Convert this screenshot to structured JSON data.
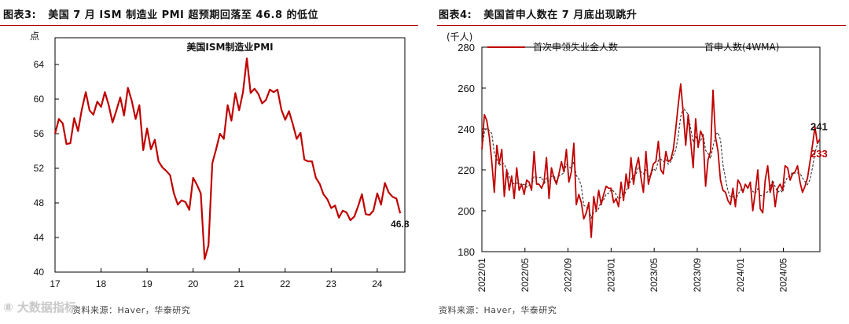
{
  "left": {
    "title_prefix": "图表3:",
    "title": "美国 7 月 ISM 制造业 PMI 超预期回落至 46.8 的低位",
    "source": "资料来源：Haver，华泰研究",
    "watermark": "⑧ 大数据指标"
  },
  "right": {
    "title_prefix": "图表4:",
    "title": "美国首申人数在 7 月底出现跳升",
    "source": "资料来源：Haver，华泰研究"
  },
  "chart_data": [
    {
      "type": "line",
      "title": "美国ISM制造业PMI",
      "ylabel": "点",
      "ylim": [
        40,
        65
      ],
      "yticks": [
        "40",
        "44",
        "48",
        "52",
        "56",
        "60",
        "64"
      ],
      "xlim": [
        17,
        24.6
      ],
      "xticks": [
        "17",
        "18",
        "19",
        "20",
        "21",
        "22",
        "23",
        "24"
      ],
      "annotation": "46.8",
      "color": "#c00000",
      "series": [
        {
          "x": [
            17.0,
            17.083,
            17.167,
            17.25,
            17.333,
            17.417,
            17.5,
            17.583,
            17.667,
            17.75,
            17.833,
            17.917,
            18.0,
            18.083,
            18.167,
            18.25,
            18.333,
            18.417,
            18.5,
            18.583,
            18.667,
            18.75,
            18.833,
            18.917,
            19.0,
            19.083,
            19.167,
            19.25,
            19.333,
            19.417,
            19.5,
            19.583,
            19.667,
            19.75,
            19.833,
            19.917,
            20.0,
            20.083,
            20.167,
            20.25,
            20.333,
            20.417,
            20.5,
            20.583,
            20.667,
            20.75,
            20.833,
            20.917,
            21.0,
            21.083,
            21.167,
            21.25,
            21.333,
            21.417,
            21.5,
            21.583,
            21.667,
            21.75,
            21.833,
            21.917,
            22.0,
            22.083,
            22.167,
            22.25,
            22.333,
            22.417,
            22.5,
            22.583,
            22.667,
            22.75,
            22.833,
            22.917,
            23.0,
            23.083,
            23.167,
            23.25,
            23.333,
            23.417,
            23.5,
            23.583,
            23.667,
            23.75,
            23.833,
            23.917,
            24.0,
            24.083,
            24.167,
            24.25,
            24.333,
            24.417,
            24.5
          ],
          "y": [
            56.0,
            57.7,
            57.2,
            54.8,
            54.9,
            57.8,
            56.3,
            58.8,
            60.8,
            58.7,
            58.2,
            59.7,
            59.1,
            60.8,
            59.3,
            57.3,
            58.7,
            60.2,
            58.1,
            61.3,
            59.8,
            57.7,
            59.3,
            54.1,
            56.6,
            54.2,
            55.3,
            52.8,
            52.1,
            51.7,
            51.2,
            49.1,
            47.8,
            48.3,
            48.1,
            47.2,
            50.9,
            50.1,
            49.1,
            41.5,
            43.1,
            52.6,
            54.2,
            56.0,
            55.4,
            59.3,
            57.5,
            60.7,
            58.7,
            60.8,
            64.7,
            60.7,
            61.2,
            60.6,
            59.5,
            59.9,
            61.1,
            60.8,
            61.1,
            58.8,
            57.6,
            58.6,
            57.1,
            55.4,
            56.1,
            53.0,
            52.8,
            52.8,
            50.9,
            50.2,
            49.0,
            48.4,
            47.4,
            47.7,
            46.3,
            47.1,
            46.9,
            46.0,
            46.4,
            47.6,
            49.0,
            46.7,
            46.6,
            47.1,
            49.1,
            47.8,
            50.3,
            49.2,
            48.7,
            48.5,
            46.8
          ]
        }
      ]
    },
    {
      "type": "line",
      "ylabel": "(千人)",
      "ylim": [
        180,
        280
      ],
      "yticks": [
        "180",
        "200",
        "220",
        "240",
        "260",
        "280"
      ],
      "xticks": [
        "2022/01",
        "2022/05",
        "2022/09",
        "2023/01",
        "2023/05",
        "2023/09",
        "2024/01",
        "2024/05"
      ],
      "x_range_weeks": [
        0,
        136
      ],
      "annotations": [
        "241",
        "233"
      ],
      "series": [
        {
          "name": "首次申领失业金人数",
          "color": "#c00000",
          "dash": "solid",
          "y": [
            230,
            247,
            244,
            236,
            224,
            209,
            232,
            223,
            230,
            207,
            220,
            210,
            217,
            206,
            221,
            210,
            213,
            208,
            215,
            214,
            210,
            229,
            213,
            213,
            211,
            214,
            226,
            206,
            221,
            216,
            213,
            218,
            224,
            219,
            230,
            214,
            219,
            233,
            203,
            208,
            204,
            196,
            199,
            204,
            187,
            207,
            200,
            210,
            203,
            208,
            212,
            211,
            211,
            204,
            206,
            202,
            214,
            205,
            218,
            211,
            226,
            213,
            221,
            226,
            216,
            209,
            229,
            213,
            218,
            223,
            224,
            234,
            220,
            218,
            229,
            224,
            225,
            230,
            240,
            252,
            262,
            248,
            232,
            247,
            234,
            221,
            245,
            231,
            239,
            236,
            212,
            225,
            229,
            259,
            236,
            229,
            215,
            210,
            209,
            205,
            203,
            211,
            202,
            215,
            213,
            209,
            213,
            211,
            214,
            200,
            209,
            220,
            201,
            199,
            215,
            222,
            209,
            214,
            202,
            211,
            213,
            210,
            222,
            221,
            215,
            218,
            219,
            222,
            214,
            209,
            212,
            216,
            224,
            232,
            241,
            233,
            235
          ]
        },
        {
          "name": "首申人数(4WMA)",
          "color": "#333333",
          "dash": "dashed"
        }
      ]
    }
  ]
}
